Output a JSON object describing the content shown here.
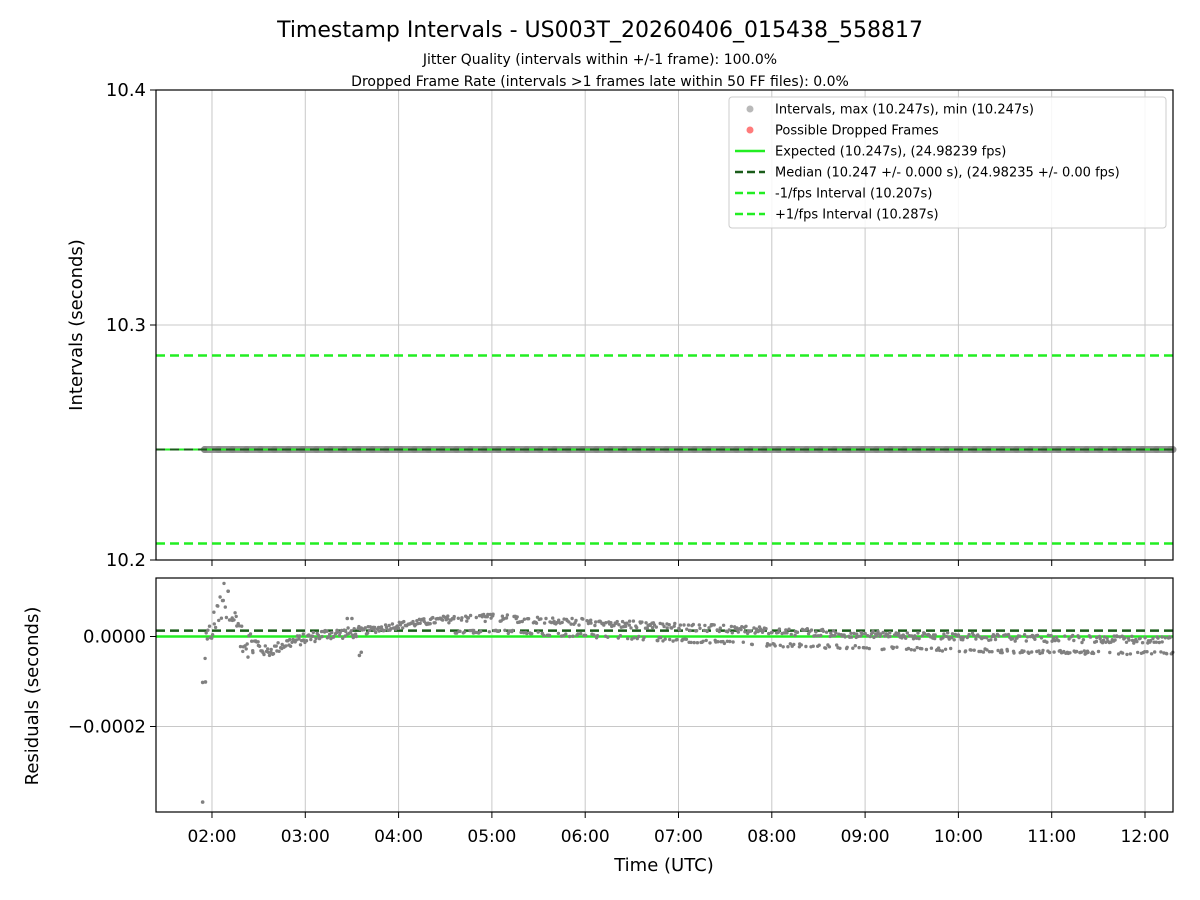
{
  "title": "Timestamp Intervals - US003T_20260406_015438_558817",
  "subtitle_line1": "Jitter Quality (intervals within +/-1 frame): 100.0%",
  "subtitle_line2": "Dropped Frame Rate (intervals >1 frames late within 50 FF files): 0.0%",
  "colors": {
    "intervals": "#808080",
    "dropped": "#ff5a5a",
    "expected": "#22ee22",
    "median": "#1a5c1a",
    "bound": "#22ee22",
    "grid": "#c8c8c8"
  },
  "chart_data": [
    {
      "type": "scatter",
      "panel": "top",
      "ylabel": "Intervals (seconds)",
      "xlabel": "",
      "x_unit": "hours UTC",
      "xlim": [
        1.4,
        12.3
      ],
      "ylim": [
        10.2,
        10.4
      ],
      "yticks": [
        10.2,
        10.3,
        10.4
      ],
      "ytick_labels": [
        "10.2",
        "10.3",
        "10.4"
      ],
      "grid": true,
      "legend_position": "top-right",
      "legend": [
        "Intervals, max (10.247s), min (10.247s)",
        "Possible Dropped Frames",
        "Expected (10.247s), (24.98239 fps)",
        "Median (10.247 +/- 0.000 s), (24.98235 +/- 0.00 fps)",
        "-1/fps Interval (10.207s)",
        "+1/fps Interval (10.287s)"
      ],
      "series": [
        {
          "name": "Intervals",
          "style": "points",
          "x_range": [
            1.92,
            12.3
          ],
          "value": 10.247
        },
        {
          "name": "Possible Dropped Frames",
          "style": "points",
          "points": []
        },
        {
          "name": "Expected",
          "style": "solid-line",
          "value": 10.247
        },
        {
          "name": "Median",
          "style": "dashed-line",
          "value": 10.247
        },
        {
          "name": "-1/fps Interval",
          "style": "dashed-line",
          "value": 10.207
        },
        {
          "name": "+1/fps Interval",
          "style": "dashed-line",
          "value": 10.287
        }
      ]
    },
    {
      "type": "scatter",
      "panel": "bottom",
      "ylabel": "Residuals (seconds)",
      "xlabel": "Time (UTC)",
      "xlim": [
        1.4,
        12.3
      ],
      "ylim": [
        -0.00039,
        0.00013
      ],
      "yticks": [
        -0.0002,
        0.0
      ],
      "ytick_labels": [
        "−0.0002",
        "0.0000"
      ],
      "xticks": [
        2,
        3,
        4,
        5,
        6,
        7,
        8,
        9,
        10,
        11,
        12
      ],
      "xtick_labels": [
        "02:00",
        "03:00",
        "04:00",
        "05:00",
        "06:00",
        "07:00",
        "08:00",
        "09:00",
        "10:00",
        "11:00",
        "12:00"
      ],
      "grid": true,
      "series": [
        {
          "name": "Expected residual",
          "style": "solid-line",
          "value": 0.0
        },
        {
          "name": "Median residual",
          "style": "dashed-line",
          "value": 1.3e-05
        },
        {
          "name": "Residuals",
          "style": "points",
          "trend": [
            [
              1.92,
              -4e-05
            ],
            [
              2.0,
              2e-05
            ],
            [
              2.1,
              6e-05
            ],
            [
              2.2,
              4e-05
            ],
            [
              2.3,
              0.0
            ],
            [
              2.45,
              -2e-05
            ],
            [
              2.6,
              -3.5e-05
            ],
            [
              2.8,
              -1.5e-05
            ],
            [
              3.0,
              -5e-06
            ],
            [
              3.2,
              5e-06
            ],
            [
              3.5,
              8e-06
            ],
            [
              4.0,
              2.5e-05
            ],
            [
              4.5,
              3.8e-05
            ],
            [
              5.0,
              4.2e-05
            ],
            [
              6.0,
              3.2e-05
            ],
            [
              7.0,
              2.2e-05
            ],
            [
              8.0,
              1.2e-05
            ],
            [
              9.0,
              5e-06
            ],
            [
              10.0,
              0.0
            ],
            [
              11.0,
              -5e-06
            ],
            [
              12.3,
              -8e-06
            ]
          ],
          "outliers": [
            [
              1.9,
              -0.000102
            ],
            [
              1.93,
              -0.000101
            ],
            [
              1.9,
              -0.000368
            ],
            [
              3.6,
              -3.5e-05
            ],
            [
              3.58,
              -4.2e-05
            ],
            [
              3.45,
              4e-05
            ],
            [
              3.5,
              4e-05
            ]
          ]
        }
      ]
    }
  ]
}
